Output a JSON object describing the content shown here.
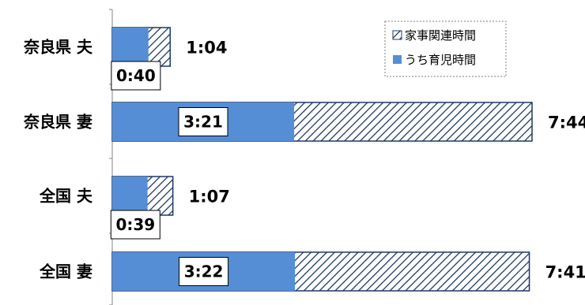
{
  "chart_data": {
    "type": "bar",
    "orientation": "horizontal",
    "stacked": true,
    "categories": [
      "奈良県 夫",
      "奈良県 妻",
      "全国 夫",
      "全国 妻"
    ],
    "series": [
      {
        "name": "家事関連時間",
        "pattern": "diagonal-hatch",
        "color": "#1F3864",
        "values_minutes": [
          64,
          464,
          67,
          461
        ],
        "labels": [
          "1:04",
          "7:44",
          "1:07",
          "7:41"
        ]
      },
      {
        "name": "うち育児時間",
        "color": "#558ED5",
        "values_minutes": [
          40,
          201,
          39,
          202
        ],
        "labels": [
          "0:40",
          "3:21",
          "0:39",
          "3:22"
        ]
      }
    ],
    "xlim": [
      0,
      464
    ],
    "grid": false,
    "legend_position": "top-right"
  }
}
